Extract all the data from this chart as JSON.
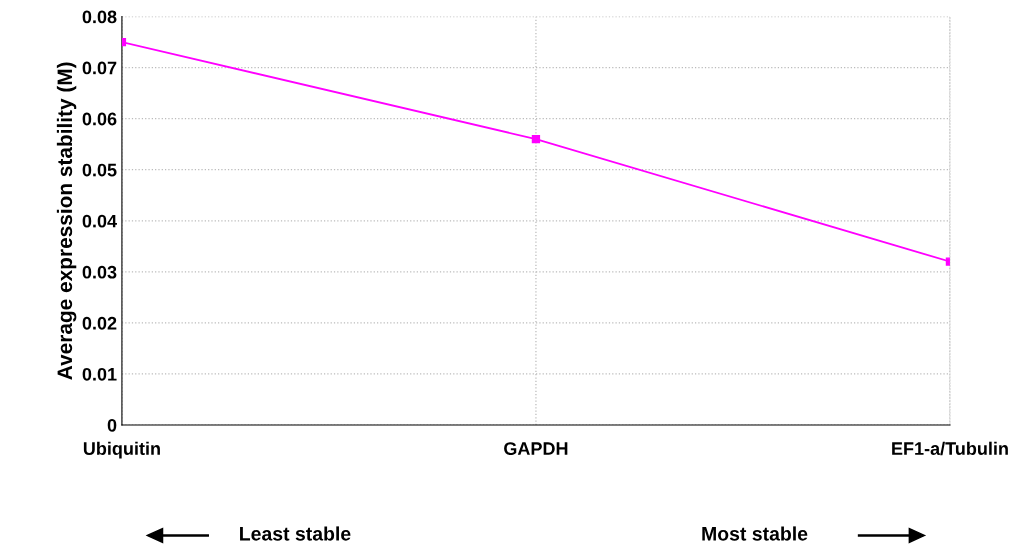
{
  "chart_data": {
    "type": "line",
    "ylabel": "Average expression stability (M)",
    "categories": [
      "Ubiquitin",
      "GAPDH",
      "EF1-a/Tubulin"
    ],
    "series": [
      {
        "color": "#ff00ff",
        "values": [
          0.075,
          0.056,
          0.032
        ]
      }
    ],
    "ylim": [
      0,
      0.08
    ],
    "yticks": [
      0,
      0.01,
      0.02,
      0.03,
      0.04,
      0.05,
      0.06,
      0.07,
      0.08
    ],
    "grid": true,
    "marker": "square",
    "line_style": "solid",
    "annotations": [
      "Least stable",
      "Most stable"
    ]
  }
}
